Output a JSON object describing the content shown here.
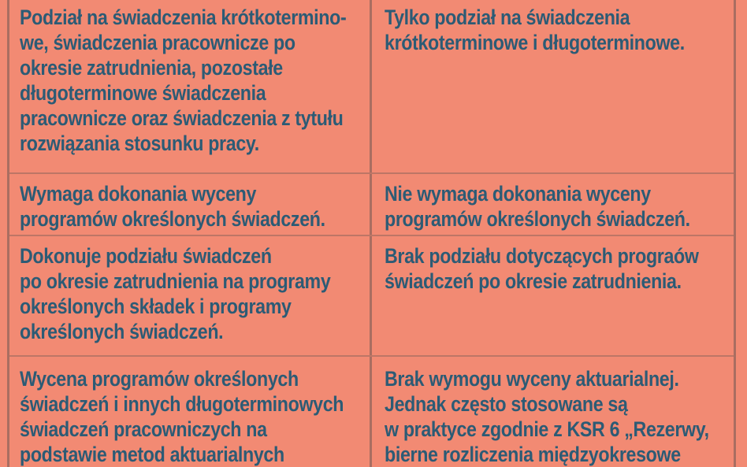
{
  "colors": {
    "background": "#F28A73",
    "text": "#2C5B75",
    "grid_line": "#6E5852"
  },
  "table": {
    "rows": [
      {
        "left": "Podział na świadczenia krótkotermino-\nwe, świadczenia pracownicze po\nokresie zatrudnienia, pozostałe\ndługoterminowe świadczenia\npracownicze oraz świadczenia z tytułu\nrozwiązania stosunku pracy.",
        "right": "Tylko podział na świadczenia\nkrótkoterminowe i długoterminowe."
      },
      {
        "left": "Wymaga dokonania wyceny\nprogramów określonych świadczeń.",
        "right": "Nie wymaga dokonania wyceny\nprogramów określonych świadczeń."
      },
      {
        "left": "Dokonuje podziału świadczeń\npo okresie zatrudnienia na programy\nokreślonych składek i programy\nokreślonych świadczeń.",
        "right": "Brak podziału dotyczących prograów\nświadczeń po okresie zatrudnienia."
      },
      {
        "left": "Wycena programów określonych\nświadczeń i innych długoterminowych\nświadczeń pracowniczych na\npodstawie metod aktuarialnych",
        "right": "Brak wymogu wyceny aktuarialnej.\nJednak często stosowane są\nw praktyce zgodnie z KSR 6 „Rezerwy,\nbierne rozliczenia międzyokresowe"
      }
    ]
  }
}
